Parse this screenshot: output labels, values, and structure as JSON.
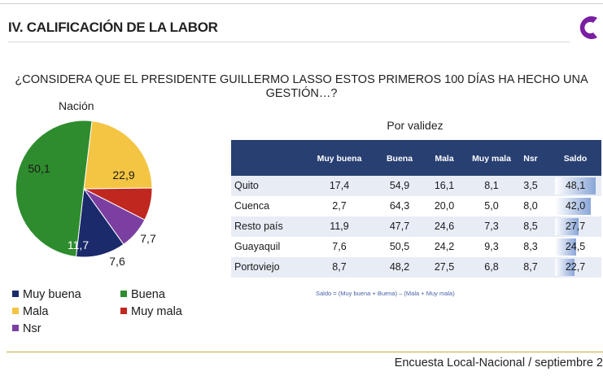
{
  "header": {
    "section_title": "IV. CALIFICACIÓN DE LA LABOR"
  },
  "question": "¿CONSIDERA QUE EL PRESIDENTE GUILLERMO LASSO ESTOS PRIMEROS 100 DÍAS HA HECHO UNA GESTIÓN…?",
  "colors": {
    "muy_buena": "#1b2a6b",
    "buena": "#2e8b2e",
    "mala": "#f4c542",
    "muy_mala": "#c0281f",
    "nsr": "#7b3fa1",
    "table_header": "#283f72"
  },
  "chart_data": [
    {
      "type": "pie",
      "title": "Nación",
      "slices": [
        {
          "label": "Muy buena",
          "value": 11.7,
          "value_label": "11,7"
        },
        {
          "label": "Buena",
          "value": 50.1,
          "value_label": "50,1"
        },
        {
          "label": "Mala",
          "value": 22.9,
          "value_label": "22,9"
        },
        {
          "label": "Muy mala",
          "value": 7.7,
          "value_label": "7,7"
        },
        {
          "label": "Nsr",
          "value": 7.6,
          "value_label": "7,6"
        }
      ],
      "legend": [
        "Muy buena",
        "Buena",
        "Mala",
        "Muy mala",
        "Nsr"
      ],
      "legend_placement": "bottom"
    },
    {
      "type": "table",
      "title": "Por validez",
      "columns": [
        "Muy buena",
        "Buena",
        "Mala",
        "Muy mala",
        "Nsr",
        "Saldo"
      ],
      "rows": [
        {
          "label": "Quito",
          "values": [
            "17,4",
            "54,9",
            "16,1",
            "8,1",
            "3,5",
            "48,1"
          ],
          "saldo": 48.1
        },
        {
          "label": "Cuenca",
          "values": [
            "2,7",
            "64,3",
            "20,0",
            "5,0",
            "8,0",
            "42,0"
          ],
          "saldo": 42.0
        },
        {
          "label": "Resto país",
          "values": [
            "11,9",
            "47,7",
            "24,6",
            "7,3",
            "8,5",
            "27,7"
          ],
          "saldo": 27.7
        },
        {
          "label": "Guayaquil",
          "values": [
            "7,6",
            "50,5",
            "24,2",
            "9,3",
            "8,3",
            "24,5"
          ],
          "saldo": 24.5
        },
        {
          "label": "Portoviejo",
          "values": [
            "8,7",
            "48,2",
            "27,5",
            "6,8",
            "8,7",
            "22,7"
          ],
          "saldo": 22.7
        }
      ],
      "note": "Saldo = (Muy buena + Buena) – (Mala + Muy mala)"
    }
  ],
  "footer": "Encuesta Local-Nacional / septiembre 2"
}
